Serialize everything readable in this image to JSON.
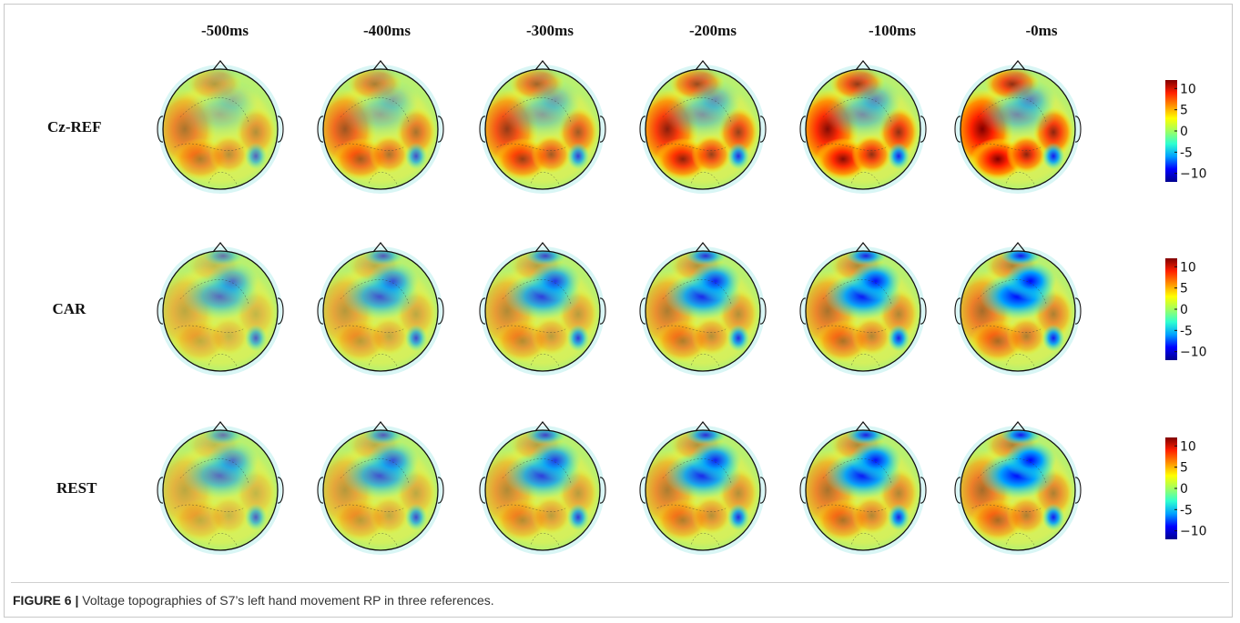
{
  "figure": {
    "columns": [
      "-500ms",
      "-400ms",
      "-300ms",
      "-200ms",
      "-100ms",
      "-0ms"
    ],
    "rows": [
      "Cz-REF",
      "CAR",
      "REST"
    ],
    "colorbar": {
      "ticks": [
        "10",
        "5",
        "0",
        "-5",
        "−10"
      ],
      "range": [
        -12,
        12
      ],
      "colormap": [
        "#00008f",
        "#0000ff",
        "#00a0ff",
        "#2fffd0",
        "#a0ff60",
        "#ffff00",
        "#ff9000",
        "#ff2000",
        "#800000"
      ]
    },
    "caption_label": "FIGURE 6 |",
    "caption_text": " Voltage topographies of S7’s left hand movement RP in three references."
  },
  "maps": {
    "Cz-REF": [
      0.25,
      0.45,
      0.62,
      0.8,
      0.92,
      1.0
    ],
    "CAR": [
      0.3,
      0.48,
      0.64,
      0.8,
      0.92,
      1.0
    ],
    "REST": [
      0.3,
      0.48,
      0.64,
      0.8,
      0.92,
      1.0
    ]
  }
}
